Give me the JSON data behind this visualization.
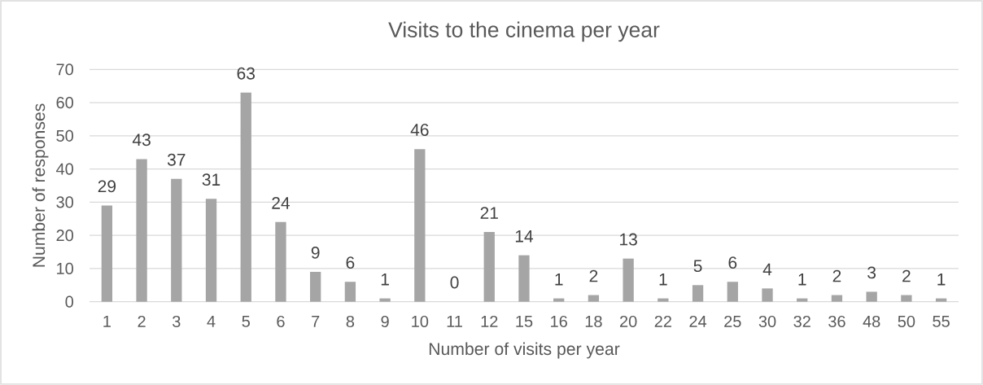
{
  "chart_data": {
    "type": "bar",
    "title": "Visits to the cinema per year",
    "xlabel": "Number of visits per year",
    "ylabel": "Number of responses",
    "categories": [
      "1",
      "2",
      "3",
      "4",
      "5",
      "6",
      "7",
      "8",
      "9",
      "10",
      "11",
      "12",
      "15",
      "16",
      "18",
      "20",
      "22",
      "24",
      "25",
      "30",
      "32",
      "36",
      "48",
      "50",
      "55"
    ],
    "values": [
      29,
      43,
      37,
      31,
      63,
      24,
      9,
      6,
      1,
      46,
      0,
      21,
      14,
      1,
      2,
      13,
      1,
      5,
      6,
      4,
      1,
      2,
      3,
      2,
      1
    ],
    "color": "#a5a5a5",
    "ylim": [
      0,
      70
    ],
    "yticks": [
      0,
      10,
      20,
      30,
      40,
      50,
      60,
      70
    ],
    "grid": "y",
    "data_labels": true
  }
}
